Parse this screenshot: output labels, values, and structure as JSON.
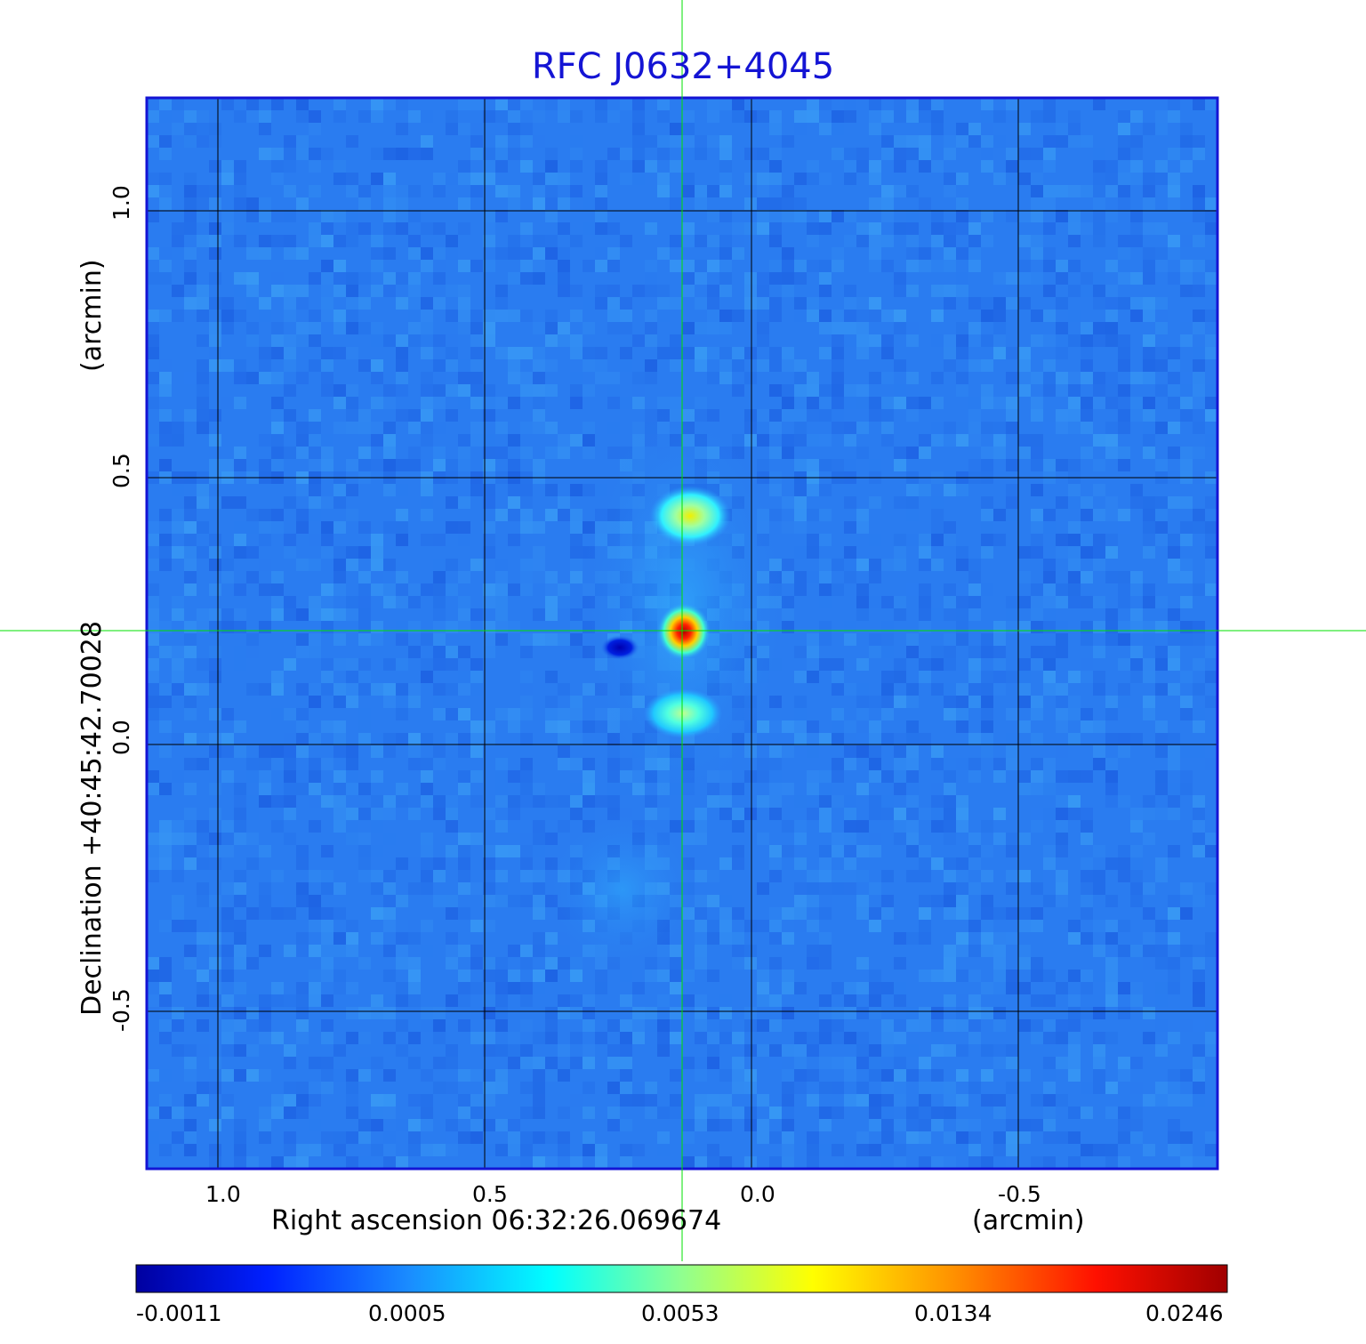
{
  "title": "RFC J0632+4045",
  "xlabel": "Right ascension  06:32:26.069674",
  "xunit": "(arcmin)",
  "ylabel": "Declination  +40:45:42.70028",
  "yunit": "(arcmin)",
  "x_ticks": [
    "1.0",
    "0.5",
    "0.0",
    "-0.5"
  ],
  "y_ticks": [
    "1.0",
    "0.5",
    "0.0",
    "-0.5"
  ],
  "colorbar": {
    "labels": [
      "-0.0011",
      "0.0005",
      "0.0053",
      "0.0134",
      "0.0246"
    ],
    "colors": [
      "#0000a0",
      "#0040ff",
      "#00ffff",
      "#ffff00",
      "#ff0000",
      "#a00000"
    ]
  },
  "colors": {
    "title": "#1414d4",
    "frame": "#1414d4",
    "background_map": "#2a7cf0",
    "crosshair": "#00e000",
    "grid": "#000000"
  },
  "chart_data": {
    "type": "heatmap",
    "title": "RFC J0632+4045",
    "xlabel": "Right ascension  06:32:26.069674 (arcmin)",
    "ylabel": "Declination  +40:45:42.70028 (arcmin)",
    "xlim": [
      1.13,
      -0.87
    ],
    "ylim": [
      -0.79,
      1.21
    ],
    "x_ticks": [
      1.0,
      0.5,
      0.0,
      -0.5
    ],
    "y_ticks": [
      1.0,
      0.5,
      0.0,
      -0.5
    ],
    "grid": true,
    "crosshair": [
      0.13,
      0.21
    ],
    "colorbar_range": [
      -0.0011,
      0.0246
    ],
    "colorbar_ticks": [
      -0.0011,
      0.0005,
      0.0053,
      0.0134,
      0.0246
    ],
    "components": [
      {
        "x": 0.13,
        "y": 0.21,
        "peak": 0.0246
      },
      {
        "x": 0.12,
        "y": 0.43,
        "peak": 0.0075
      },
      {
        "x": 0.13,
        "y": 0.05,
        "peak": 0.0045
      },
      {
        "x": 0.25,
        "y": 0.18,
        "peak": -0.0011
      }
    ]
  }
}
